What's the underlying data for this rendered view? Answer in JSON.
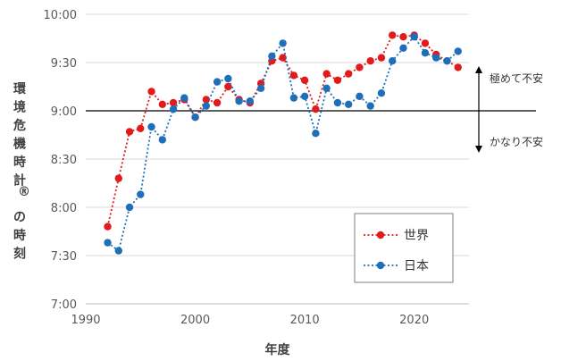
{
  "chart_data": {
    "type": "line",
    "xlabel": "年度",
    "ylabel": "環境危機時計®の時刻",
    "xlim": [
      1990,
      2025
    ],
    "ylim": [
      "7:00",
      "10:00"
    ],
    "xticks": [
      "1990",
      "2000",
      "2010",
      "2020"
    ],
    "yticks": [
      "7:00",
      "7:30",
      "8:00",
      "8:30",
      "9:00",
      "9:30",
      "10:00"
    ],
    "reference_line": "9:00",
    "annotations": {
      "up": "極めて不安",
      "down": "かなり不安"
    },
    "legend_position": "bottom-right",
    "series": [
      {
        "name": "世界",
        "color": "#e31a1c",
        "points": [
          [
            1992,
            "7:48"
          ],
          [
            1993,
            "8:18"
          ],
          [
            1994,
            "8:47"
          ],
          [
            1995,
            "8:49"
          ],
          [
            1996,
            "9:12"
          ],
          [
            1997,
            "9:04"
          ],
          [
            1998,
            "9:05"
          ],
          [
            1999,
            "9:07"
          ],
          [
            2000,
            "8:56"
          ],
          [
            2001,
            "9:07"
          ],
          [
            2002,
            "9:05"
          ],
          [
            2003,
            "9:15"
          ],
          [
            2004,
            "9:07"
          ],
          [
            2005,
            "9:05"
          ],
          [
            2006,
            "9:17"
          ],
          [
            2007,
            "9:31"
          ],
          [
            2008,
            "9:33"
          ],
          [
            2009,
            "9:22"
          ],
          [
            2010,
            "9:19"
          ],
          [
            2011,
            "9:01"
          ],
          [
            2012,
            "9:23"
          ],
          [
            2013,
            "9:19"
          ],
          [
            2014,
            "9:23"
          ],
          [
            2015,
            "9:27"
          ],
          [
            2016,
            "9:31"
          ],
          [
            2017,
            "9:33"
          ],
          [
            2018,
            "9:47"
          ],
          [
            2019,
            "9:46"
          ],
          [
            2020,
            "9:47"
          ],
          [
            2021,
            "9:42"
          ],
          [
            2022,
            "9:35"
          ],
          [
            2023,
            "9:31"
          ],
          [
            2024,
            "9:27"
          ]
        ]
      },
      {
        "name": "日本",
        "color": "#1f6fb8",
        "points": [
          [
            1992,
            "7:38"
          ],
          [
            1993,
            "7:33"
          ],
          [
            1994,
            "8:00"
          ],
          [
            1995,
            "8:08"
          ],
          [
            1996,
            "8:50"
          ],
          [
            1997,
            "8:42"
          ],
          [
            1998,
            "9:01"
          ],
          [
            1999,
            "9:08"
          ],
          [
            2000,
            "8:56"
          ],
          [
            2001,
            "9:03"
          ],
          [
            2002,
            "9:18"
          ],
          [
            2003,
            "9:20"
          ],
          [
            2004,
            "9:06"
          ],
          [
            2005,
            "9:06"
          ],
          [
            2006,
            "9:14"
          ],
          [
            2007,
            "9:34"
          ],
          [
            2008,
            "9:42"
          ],
          [
            2009,
            "9:08"
          ],
          [
            2010,
            "9:09"
          ],
          [
            2011,
            "8:46"
          ],
          [
            2012,
            "9:14"
          ],
          [
            2013,
            "9:05"
          ],
          [
            2014,
            "9:04"
          ],
          [
            2015,
            "9:09"
          ],
          [
            2016,
            "9:03"
          ],
          [
            2017,
            "9:11"
          ],
          [
            2018,
            "9:31"
          ],
          [
            2019,
            "9:39"
          ],
          [
            2020,
            "9:46"
          ],
          [
            2021,
            "9:36"
          ],
          [
            2022,
            "9:33"
          ],
          [
            2023,
            "9:31"
          ],
          [
            2024,
            "9:37"
          ]
        ]
      }
    ]
  }
}
